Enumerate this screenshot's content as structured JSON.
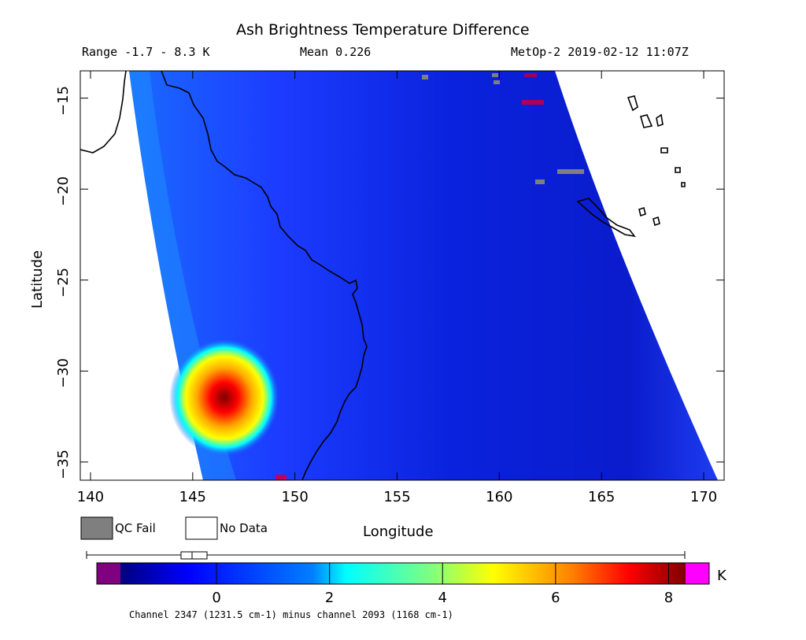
{
  "title": "Ash Brightness Temperature Difference",
  "header": {
    "range": "Range -1.7 - 8.3 K",
    "mean": "Mean 0.226",
    "satellite_time": "MetOp-2 2019-02-12 11:07Z"
  },
  "axes": {
    "xlabel": "Longitude",
    "ylabel": "Latitude",
    "x_ticks": [
      "140",
      "145",
      "150",
      "155",
      "160",
      "165",
      "170"
    ],
    "y_ticks": [
      "-15",
      "-20",
      "-25",
      "-30",
      "-35"
    ],
    "xlim": [
      139.5,
      171
    ],
    "ylim": [
      -36,
      -13.5
    ]
  },
  "legend": {
    "qc_fail": "QC Fail",
    "no_data": "No Data",
    "qc_fail_color": "#7f7f7f",
    "no_data_color": "#ffffff"
  },
  "colorbar": {
    "unit": "K",
    "ticks": [
      "0",
      "2",
      "4",
      "6",
      "8"
    ],
    "range": [
      -1.7,
      8.3
    ],
    "under_color": "#800080",
    "over_color": "#ff00ff",
    "caption": "Channel 2347 (1231.5 cm-1) minus channel 2093 (1168 cm-1)"
  }
}
